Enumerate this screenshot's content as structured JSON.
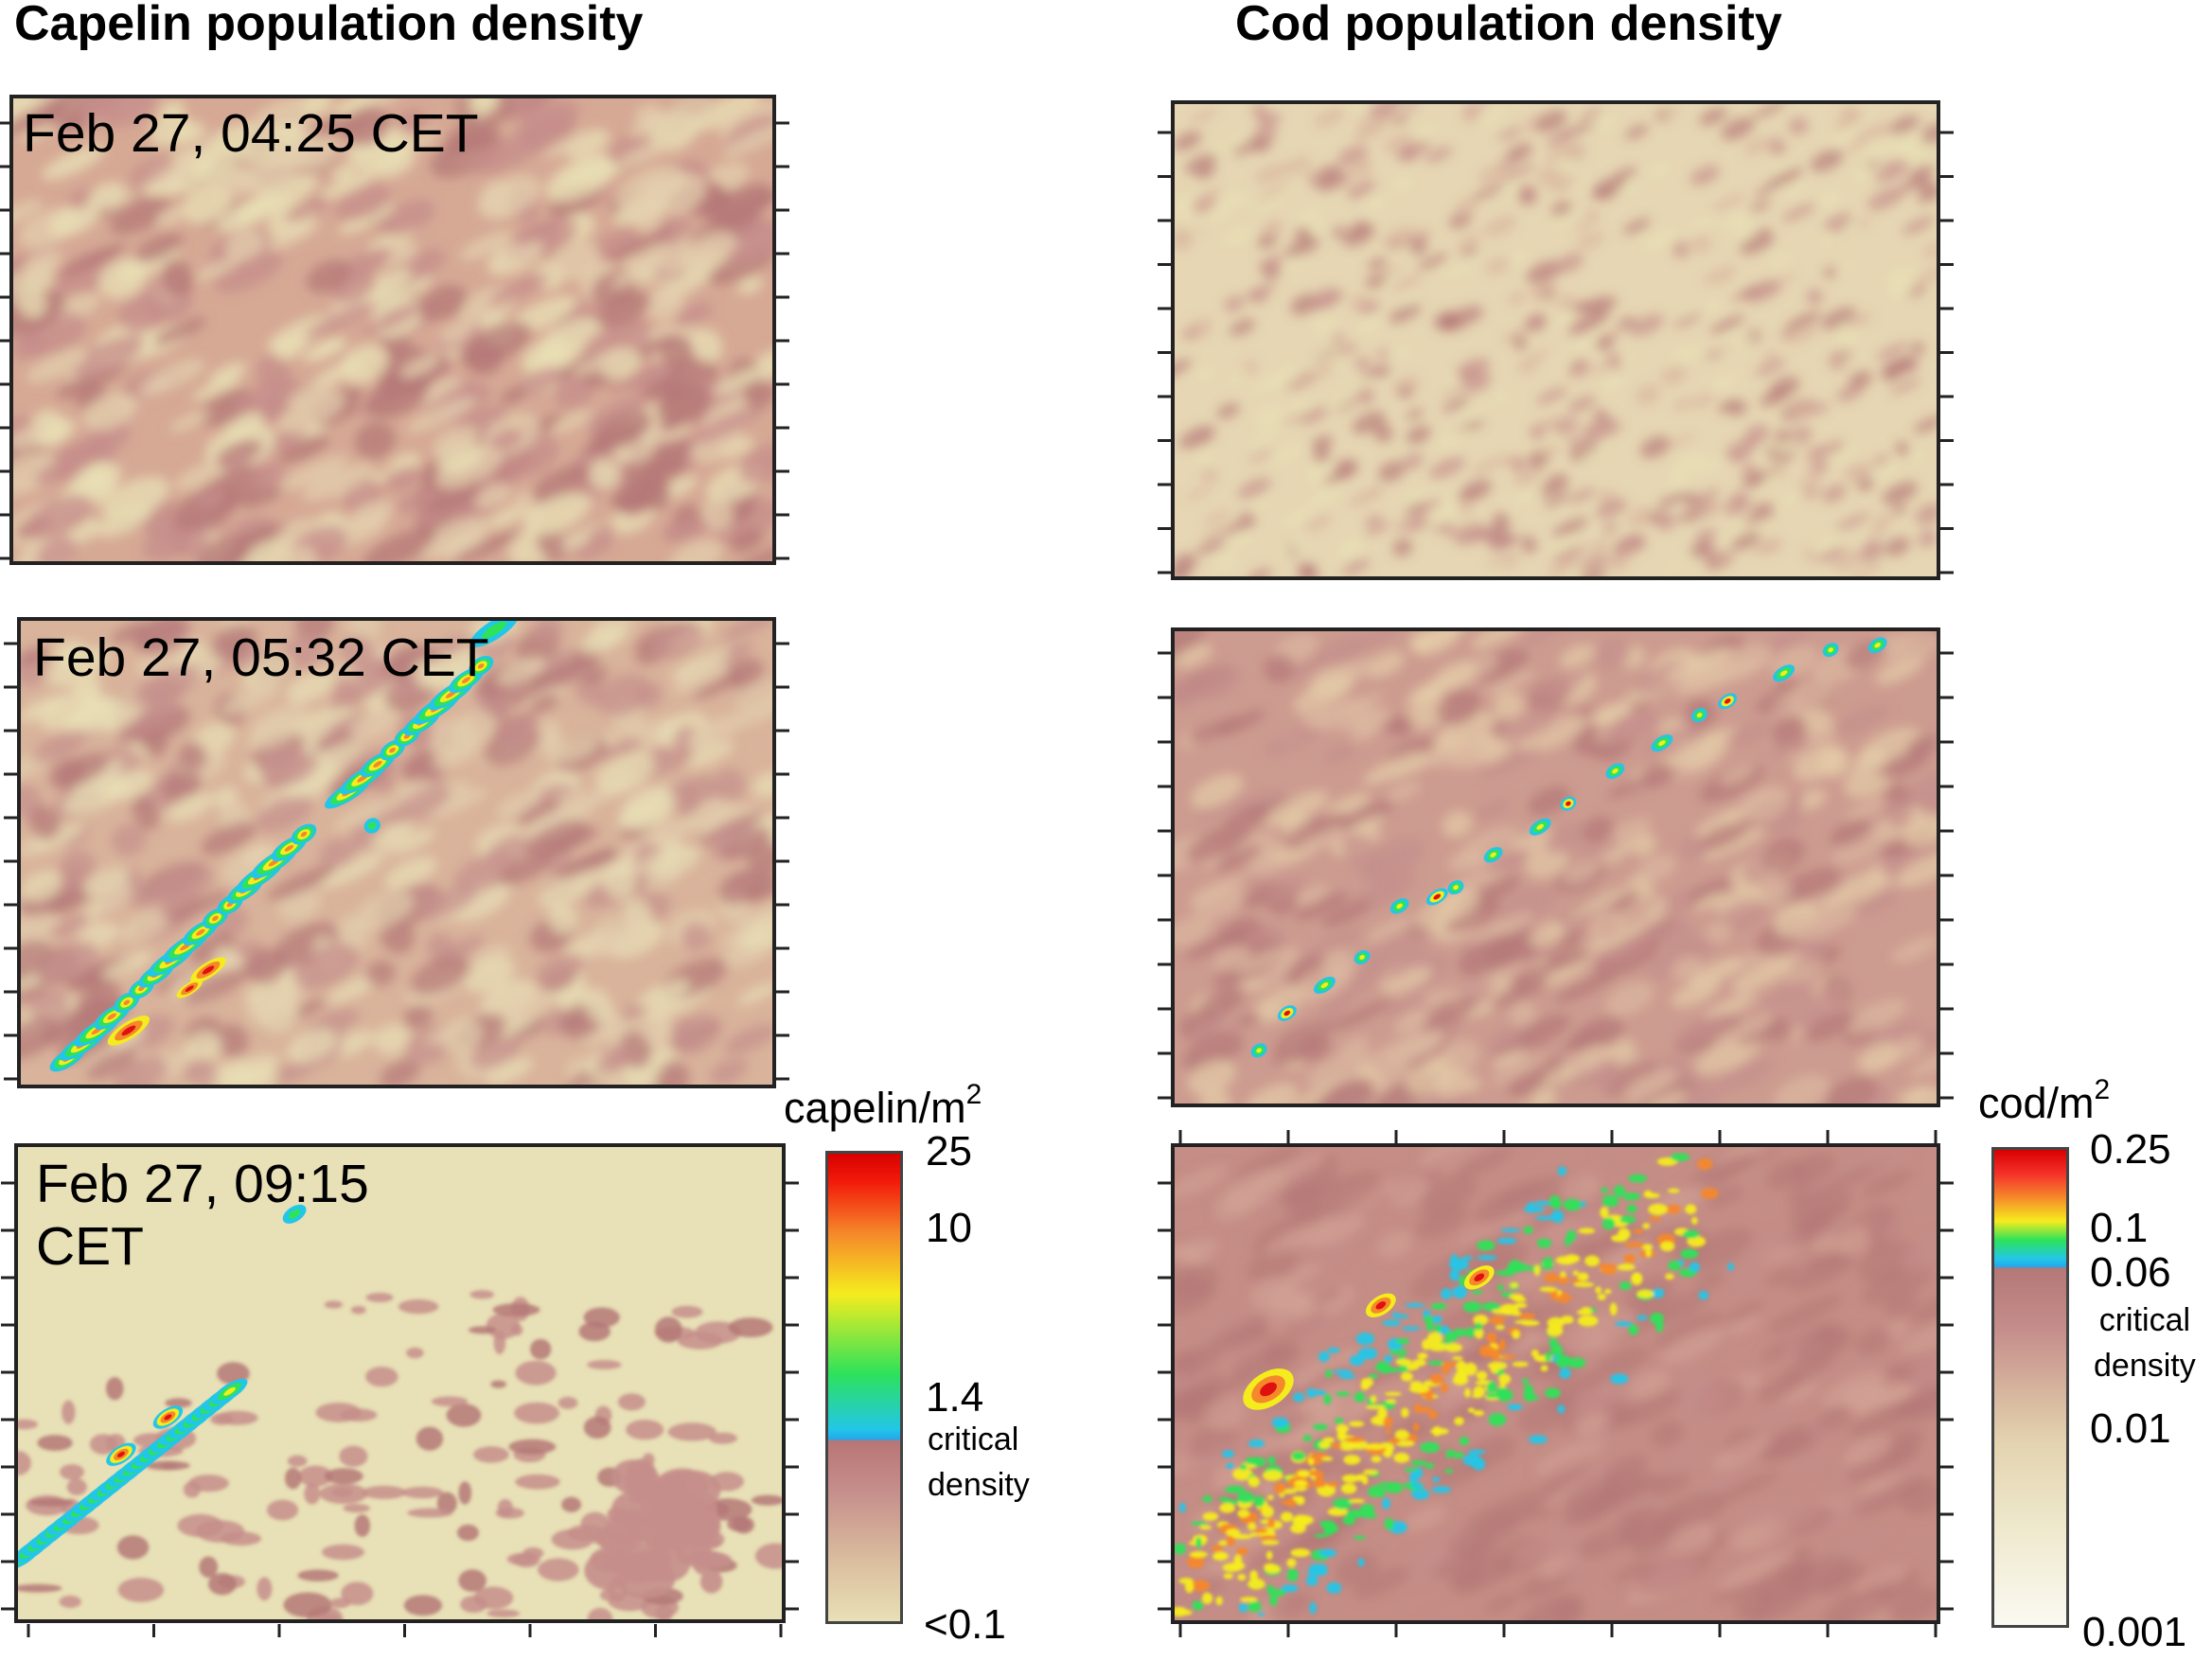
{
  "titles": {
    "left": "Capelin population density",
    "right": "Cod population density"
  },
  "panels": {
    "capelin": [
      {
        "time": "Feb 27, 04:25 CET"
      },
      {
        "time": "Feb 27, 05:32 CET"
      },
      {
        "time": "Feb 27, 09:15\nCET"
      }
    ],
    "cod": [
      {
        "time": ""
      },
      {
        "time": ""
      },
      {
        "time": ""
      }
    ]
  },
  "colorbars": {
    "capelin": {
      "unit": "capelin/m",
      "unit_sup": "2",
      "ticks": [
        "25",
        "10",
        "1.4",
        "<0.1"
      ],
      "note": "critical\ndensity"
    },
    "cod": {
      "unit": "cod/m",
      "unit_sup": "2",
      "ticks": [
        "0.25",
        "0.1",
        "0.06",
        "0.01",
        "0.001"
      ],
      "note": "critical\ndensity"
    }
  },
  "colors": {
    "background_light": "#e8e0b6",
    "mauve": "#c58e8b",
    "dark_mauve": "#b47877",
    "cyan": "#22c6e8",
    "green": "#2ee25a",
    "yellow": "#f5ec1e",
    "orange": "#f5882a",
    "red": "#e01010"
  }
}
